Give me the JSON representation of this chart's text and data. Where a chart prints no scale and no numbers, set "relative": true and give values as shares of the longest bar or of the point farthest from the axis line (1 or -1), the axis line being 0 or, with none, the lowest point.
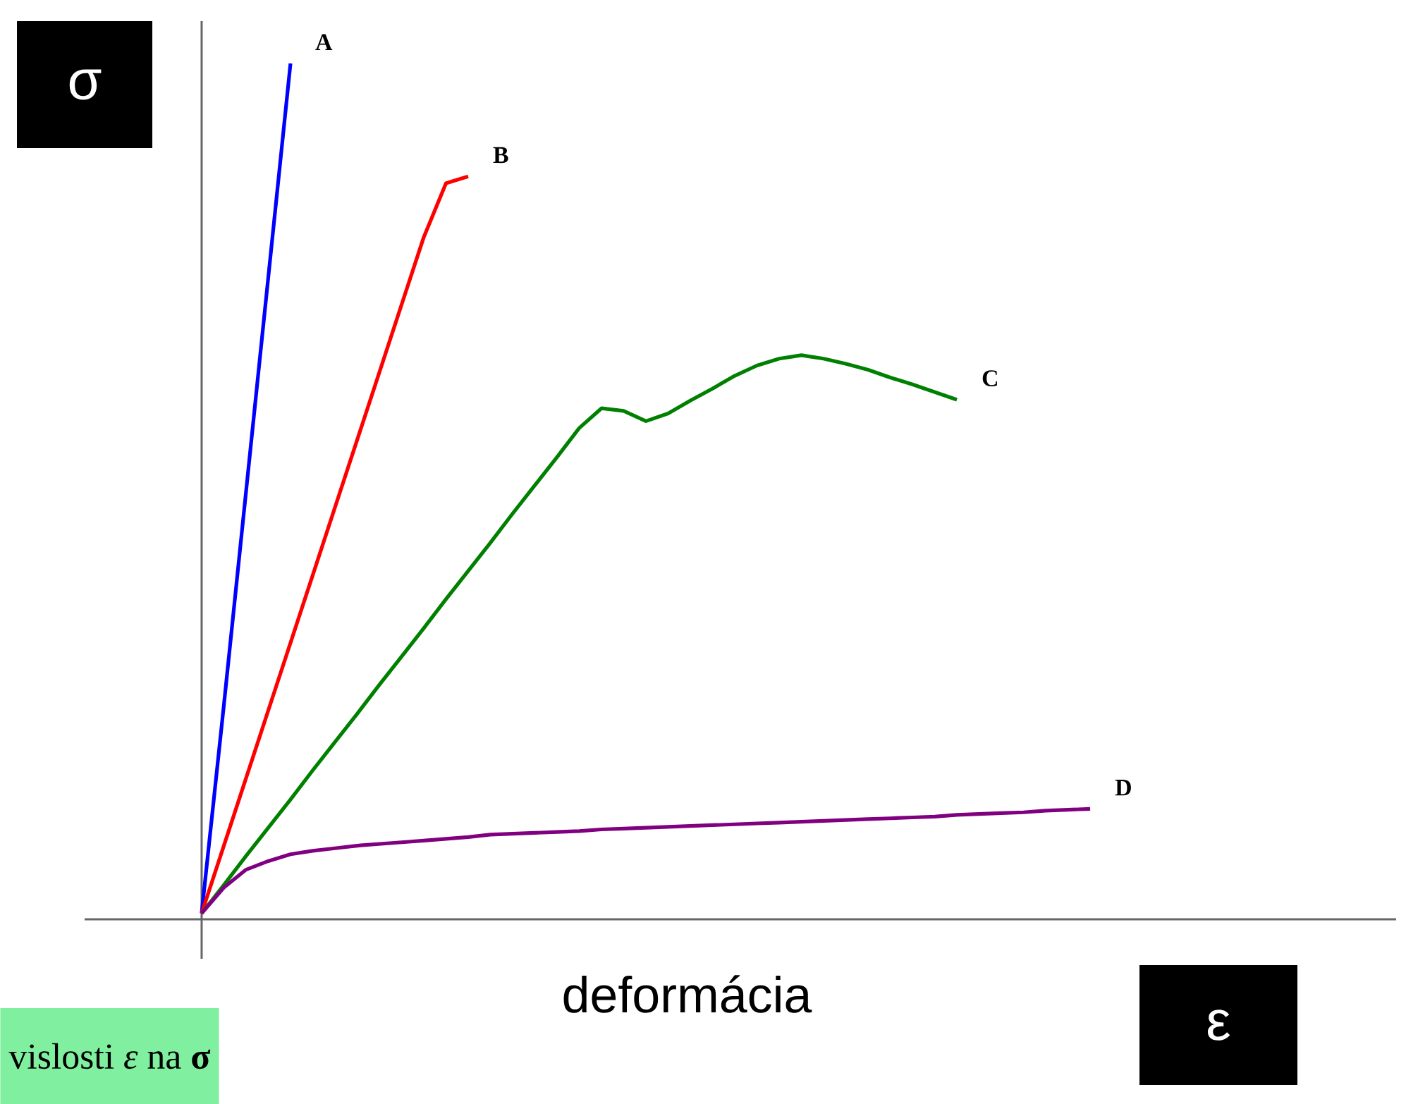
{
  "chart_data": {
    "type": "line",
    "relative": true,
    "ylabel": "σ",
    "xlabel": "deformácia",
    "annotations": [
      "ε",
      "vislosti *ε* na **σ**"
    ],
    "categories": [
      null,
      null,
      null,
      null,
      null,
      null,
      null,
      null,
      null,
      null,
      null,
      null,
      null,
      null,
      null,
      null,
      null,
      null,
      null,
      null,
      null,
      null,
      null,
      null,
      null,
      null,
      null,
      null,
      null,
      null,
      null,
      null,
      null,
      null,
      null,
      null,
      null,
      null,
      null,
      null,
      null
    ],
    "series": [
      {
        "name": "A",
        "color": "#0000ff",
        "values": [
          0.007,
          0.25,
          0.5,
          0.75,
          1.0,
          null,
          null,
          null,
          null,
          null,
          null,
          null,
          null,
          null,
          null,
          null,
          null,
          null,
          null,
          null,
          null,
          null,
          null,
          null,
          null,
          null,
          null,
          null,
          null,
          null,
          null,
          null,
          null,
          null,
          null,
          null,
          null,
          null,
          null,
          null,
          null
        ]
      },
      {
        "name": "B",
        "color": "#ff0000",
        "values": [
          0.007,
          0.086,
          0.165,
          0.244,
          0.323,
          0.402,
          0.481,
          0.56,
          0.639,
          0.718,
          0.797,
          0.86,
          0.868,
          null,
          null,
          null,
          null,
          null,
          null,
          null,
          null,
          null,
          null,
          null,
          null,
          null,
          null,
          null,
          null,
          null,
          null,
          null,
          null,
          null,
          null,
          null,
          null,
          null,
          null,
          null,
          null
        ]
      },
      {
        "name": "C",
        "color": "#008000",
        "values": [
          0.007,
          0.04,
          0.074,
          0.107,
          0.14,
          0.174,
          0.207,
          0.24,
          0.274,
          0.307,
          0.34,
          0.374,
          0.407,
          0.44,
          0.474,
          0.507,
          0.54,
          0.574,
          0.597,
          0.594,
          0.582,
          0.591,
          0.606,
          0.62,
          0.635,
          0.647,
          0.655,
          0.659,
          0.655,
          0.649,
          0.642,
          0.633,
          0.625,
          0.616,
          0.607,
          null,
          null,
          null,
          null,
          null,
          null
        ]
      },
      {
        "name": "D",
        "color": "#800080",
        "values": [
          0.007,
          0.037,
          0.058,
          0.068,
          0.076,
          0.08,
          0.083,
          0.086,
          0.088,
          0.09,
          0.092,
          0.094,
          0.096,
          0.099,
          0.1,
          0.101,
          0.102,
          0.103,
          0.105,
          0.106,
          0.107,
          0.108,
          0.109,
          0.11,
          0.111,
          0.112,
          0.113,
          0.114,
          0.115,
          0.116,
          0.117,
          0.118,
          0.119,
          0.12,
          0.122,
          0.123,
          0.124,
          0.125,
          0.127,
          0.128,
          0.129
        ]
      }
    ]
  }
}
